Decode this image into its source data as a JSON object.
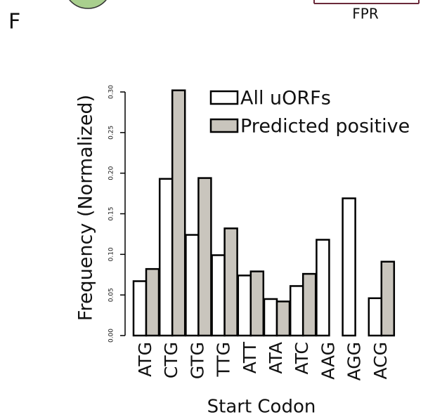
{
  "header": {
    "panel_label": "F",
    "cropped_axis_label": "FPR"
  },
  "chart_data": {
    "type": "bar",
    "x_label": "Start Codon",
    "y_label": "Frequency (Normalized)",
    "categories": [
      "ATG",
      "CTG",
      "GTG",
      "TTG",
      "ATT",
      "ATA",
      "ATC",
      "AAG",
      "AGG",
      "ACG"
    ],
    "series": [
      {
        "name": "All uORFs",
        "color": "#ffffff",
        "values": [
          0.067,
          0.193,
          0.124,
          0.099,
          0.074,
          0.045,
          0.061,
          0.118,
          0.169,
          0.046
        ]
      },
      {
        "name": "Predicted positive",
        "color": "#c9c5bd",
        "values": [
          0.082,
          0.302,
          0.194,
          0.132,
          0.079,
          0.042,
          0.076,
          0,
          0,
          0.091
        ]
      }
    ],
    "ylim": [
      0,
      0.3
    ],
    "yticks": [
      {
        "value": 0,
        "label": "0.00"
      },
      0.05,
      {
        "value": 0.1,
        "label": "0.10"
      },
      0.15,
      {
        "value": 0.2,
        "label": "0.20"
      },
      0.25,
      {
        "value": 0.3,
        "label": "0.30"
      }
    ],
    "legend": "top-right"
  }
}
